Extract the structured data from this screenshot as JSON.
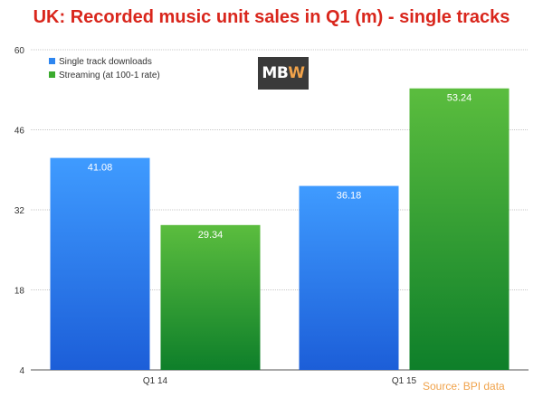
{
  "logo": {
    "text_left": "MB",
    "text_right": "W",
    "colors": {
      "background": "#3a3a3a",
      "text": "#ffffff",
      "accent": "#f0a24a"
    }
  },
  "source": "Source: BPI data",
  "chart_data": {
    "type": "bar",
    "title": "UK: Recorded music unit sales in Q1 (m) - single tracks",
    "xlabel": "",
    "ylabel": "",
    "categories": [
      "Q1 14",
      "Q1 15"
    ],
    "series": [
      {
        "name": "Single track downloads",
        "values": [
          41.08,
          36.18
        ],
        "color": "#2e86f0"
      },
      {
        "name": "Streaming (at 100-1 rate)",
        "values": [
          29.34,
          53.24
        ],
        "color": "#3bab2f"
      }
    ],
    "ylim": [
      4,
      60
    ],
    "yticks": [
      4,
      18,
      32,
      46,
      60
    ],
    "value_labels": [
      "41.08",
      "29.34",
      "36.18",
      "53.24"
    ],
    "grid": true,
    "legend_position": "top-left"
  }
}
